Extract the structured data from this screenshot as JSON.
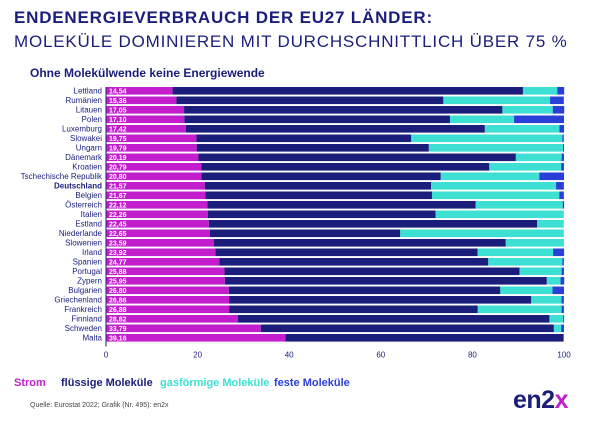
{
  "header": {
    "title_line1": "ENDENERGIEVERBRAUCH DER EU27 LÄNDER:",
    "title_line2": "MOLEKÜLE DOMINIEREN MIT DURCHSCHNITTLICH ÜBER 75 %",
    "subtitle": "Ohne Molekülwende keine Energiewende"
  },
  "legend": {
    "strom": "Strom",
    "fluessig": "flüssige Moleküle",
    "gasfoermig": "gasförmige Moleküle",
    "fest": "feste Moleküle"
  },
  "footer": {
    "source": "Quelle: Eurostat 2022; Grafik (Nr. 495): en2x",
    "logo_main": "en2",
    "logo_accent": "x"
  },
  "colors": {
    "strom": "#c21ecd",
    "fluessig": "#1a1e7a",
    "gasfoermig": "#3de0d3",
    "fest": "#2a3fd8",
    "title": "#1a1e7a"
  },
  "chart_data": {
    "type": "bar",
    "orientation": "horizontal",
    "stacked": true,
    "title": "Ohne Molekülwende keine Energiewende",
    "xlim": [
      0,
      100
    ],
    "xticks": [
      0,
      20,
      40,
      60,
      80,
      100
    ],
    "grid": false,
    "legend_position": "bottom",
    "highlight_category": "Deutschland",
    "categories": [
      "Lettland",
      "Rumänien",
      "Litauen",
      "Polen",
      "Luxemburg",
      "Slowakei",
      "Ungarn",
      "Dänemark",
      "Kroatien",
      "Tschechische Republik",
      "Deutschland",
      "Belgien",
      "Österreich",
      "Italien",
      "Estland",
      "Niederlande",
      "Slowenien",
      "Irland",
      "Spanien",
      "Portugal",
      "Zypern",
      "Bulgarien",
      "Griechenland",
      "Frankreich",
      "Finnland",
      "Schweden",
      "Malta"
    ],
    "data_labels": [
      "14,54",
      "15,36",
      "17,05",
      "17,10",
      "17,42",
      "19,75",
      "19,79",
      "20,19",
      "20,79",
      "20,80",
      "21,57",
      "21,67",
      "22,12",
      "22,26",
      "22,45",
      "22,65",
      "23,59",
      "23,92",
      "24,77",
      "25,88",
      "25,95",
      "26,80",
      "26,86",
      "26,88",
      "28,82",
      "33,79",
      "39,16"
    ],
    "series": [
      {
        "name": "Strom",
        "values": [
          14.54,
          15.36,
          17.05,
          17.1,
          17.42,
          19.75,
          19.79,
          20.19,
          20.79,
          20.8,
          21.57,
          21.67,
          22.12,
          22.26,
          22.45,
          22.65,
          23.59,
          23.92,
          24.77,
          25.88,
          25.95,
          26.8,
          26.86,
          26.88,
          28.82,
          33.79,
          39.16
        ]
      },
      {
        "name": "flüssige Moleküle",
        "values": [
          76.5,
          58.3,
          69.5,
          58.0,
          65.3,
          46.9,
          50.7,
          69.3,
          62.9,
          52.3,
          49.4,
          49.5,
          58.6,
          49.7,
          71.7,
          41.6,
          63.7,
          57.2,
          58.7,
          64.4,
          70.3,
          59.3,
          66.0,
          54.3,
          68.0,
          64.0,
          60.7
        ]
      },
      {
        "name": "gasförmige Moleküle",
        "values": [
          7.5,
          23.3,
          11.0,
          14.0,
          16.3,
          33.0,
          29.3,
          10.0,
          15.7,
          21.5,
          27.3,
          27.8,
          19.0,
          28.0,
          5.8,
          35.7,
          12.7,
          16.5,
          16.2,
          9.2,
          3.0,
          11.4,
          6.6,
          18.3,
          3.0,
          1.6,
          0.0
        ]
      },
      {
        "name": "feste Moleküle",
        "values": [
          1.5,
          3.0,
          2.5,
          10.9,
          1.0,
          0.3,
          0.2,
          0.5,
          0.6,
          5.4,
          1.7,
          1.0,
          0.3,
          0.0,
          0.0,
          0.0,
          0.0,
          2.4,
          0.3,
          0.5,
          0.8,
          2.5,
          0.5,
          0.5,
          0.2,
          0.6,
          0.1
        ]
      }
    ]
  }
}
